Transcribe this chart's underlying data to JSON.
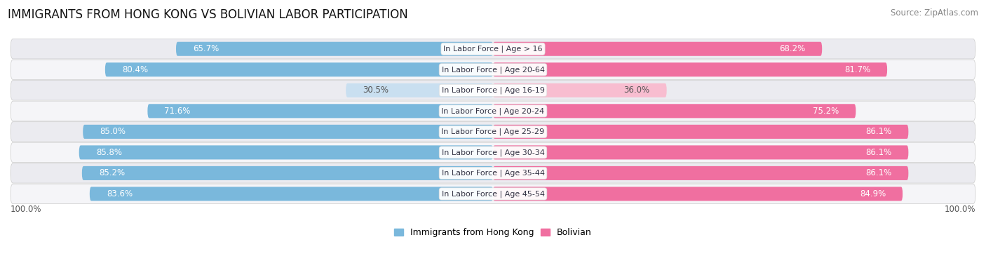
{
  "title": "IMMIGRANTS FROM HONG KONG VS BOLIVIAN LABOR PARTICIPATION",
  "source": "Source: ZipAtlas.com",
  "categories": [
    "In Labor Force | Age > 16",
    "In Labor Force | Age 20-64",
    "In Labor Force | Age 16-19",
    "In Labor Force | Age 20-24",
    "In Labor Force | Age 25-29",
    "In Labor Force | Age 30-34",
    "In Labor Force | Age 35-44",
    "In Labor Force | Age 45-54"
  ],
  "hk_values": [
    65.7,
    80.4,
    30.5,
    71.6,
    85.0,
    85.8,
    85.2,
    83.6
  ],
  "bo_values": [
    68.2,
    81.7,
    36.0,
    75.2,
    86.1,
    86.1,
    86.1,
    84.9
  ],
  "hk_color_strong": "#7ab8dc",
  "hk_color_light": "#c9dff0",
  "bo_color_strong": "#f06fa0",
  "bo_color_light": "#f8bdd0",
  "row_bg_odd": "#ebebf0",
  "row_bg_even": "#f5f5f8",
  "label_white": "#ffffff",
  "label_dark": "#555555",
  "legend_hk": "Immigrants from Hong Kong",
  "legend_bo": "Bolivian",
  "title_fontsize": 12,
  "source_fontsize": 8.5,
  "bar_label_fontsize": 8.5,
  "cat_label_fontsize": 8
}
